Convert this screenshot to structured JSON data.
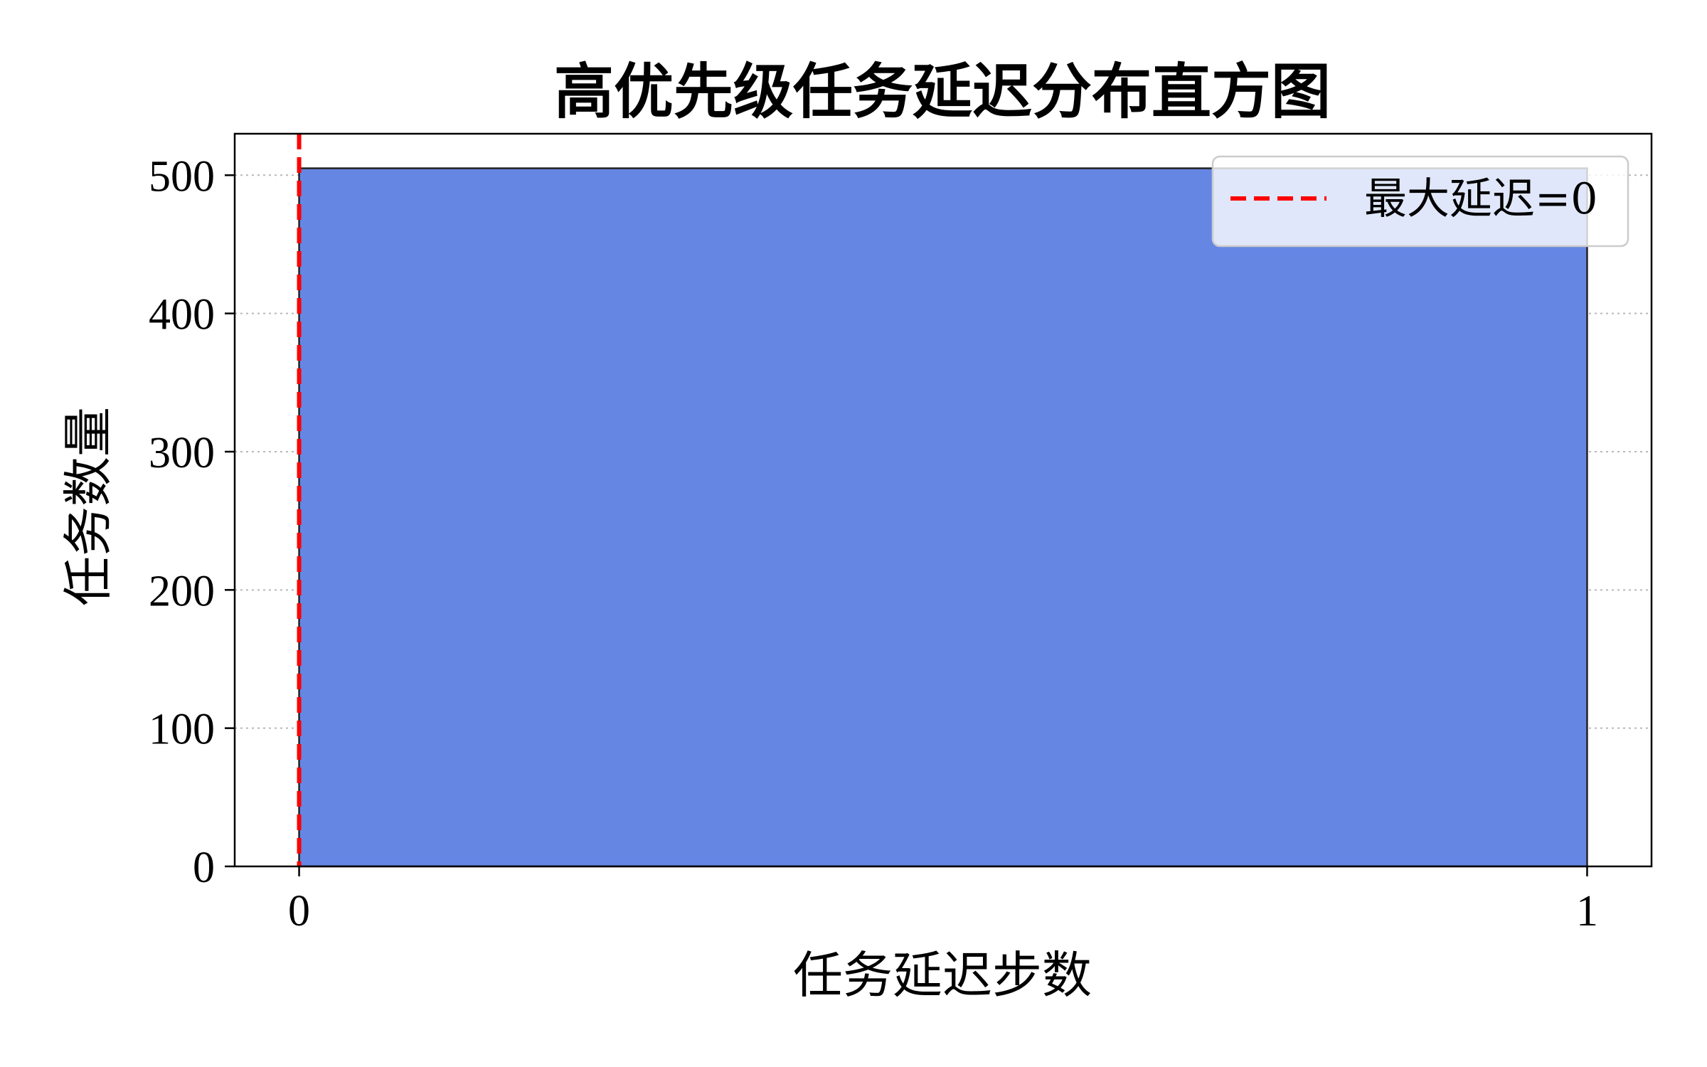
{
  "chart_data": {
    "type": "bar",
    "title": "高优先级任务延迟分布直方图",
    "xlabel": "任务延迟步数",
    "ylabel": "任务数量",
    "bins": [
      {
        "start": 0,
        "end": 1,
        "count": 505
      }
    ],
    "xlim": [
      -0.05,
      1.05
    ],
    "ylim": [
      0,
      530
    ],
    "xticks": [
      0,
      1
    ],
    "yticks": [
      0,
      100,
      200,
      300,
      400,
      500
    ],
    "grid": {
      "axis": "y",
      "style": "dotted"
    },
    "bar_color": "#6686e4",
    "bar_edge_color": "#222222",
    "reference_line": {
      "x": 0,
      "label": "最大延迟=0",
      "color": "#ff0000",
      "style": "dashed"
    },
    "legend": {
      "position": "top-right",
      "entries": [
        "最大延迟=0"
      ]
    }
  }
}
